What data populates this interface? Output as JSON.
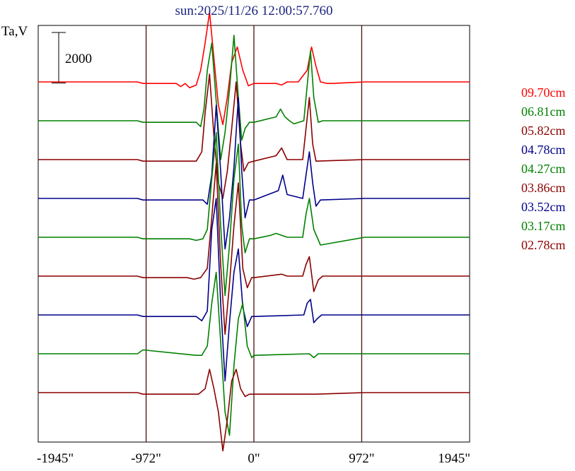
{
  "chart_data": {
    "type": "line",
    "title": "sun:2025/11/26 12:00:57.760",
    "ylabel": "Ta,V",
    "scale_bar_label": "2000",
    "scale_bar_value": 2000,
    "xlim": [
      -1945,
      1945
    ],
    "x_ticks": [
      {
        "value": -1945,
        "label": "-1945\""
      },
      {
        "value": -972,
        "label": "-972\""
      },
      {
        "value": 0,
        "label": "0\""
      },
      {
        "value": 972,
        "label": "972\""
      },
      {
        "value": 1945,
        "label": "1945\""
      }
    ],
    "vertical_gridlines": [
      -972,
      0,
      972
    ],
    "grid": true,
    "legend_placement": "right",
    "series": [
      {
        "name": "09.70cm",
        "color": "#ff0000",
        "offset": 8000,
        "x": [
          -1945,
          -1050,
          -1000,
          -700,
          -660,
          -620,
          -580,
          -520,
          -480,
          -440,
          -400,
          -360,
          -320,
          -280,
          -240,
          -200,
          -150,
          -100,
          -50,
          0,
          200,
          250,
          300,
          400,
          480,
          520,
          560,
          600,
          660,
          700,
          1000,
          1100,
          1945
        ],
        "y": [
          0,
          0,
          -40,
          -40,
          -120,
          -40,
          -150,
          -80,
          300,
          1000,
          1800,
          600,
          -600,
          -1100,
          -400,
          500,
          900,
          300,
          -100,
          -40,
          -40,
          -80,
          0,
          0,
          300,
          900,
          400,
          0,
          -40,
          -40,
          0,
          0,
          0
        ]
      },
      {
        "name": "06.81cm",
        "color": "#008000",
        "offset": 7000,
        "x": [
          -1945,
          -1050,
          -1000,
          -520,
          -480,
          -450,
          -420,
          -380,
          -340,
          -300,
          -260,
          -220,
          -180,
          -140,
          -110,
          -80,
          -40,
          0,
          200,
          240,
          280,
          320,
          360,
          450,
          480,
          510,
          540,
          580,
          620,
          1000,
          1100,
          1945
        ],
        "y": [
          0,
          0,
          -40,
          -40,
          -150,
          300,
          1300,
          2000,
          500,
          -1000,
          -300,
          800,
          2200,
          600,
          -500,
          -200,
          -40,
          -40,
          100,
          300,
          100,
          0,
          -80,
          0,
          900,
          1800,
          600,
          -40,
          0,
          0,
          0,
          0
        ]
      },
      {
        "name": "05.82cm",
        "color": "#8b0000",
        "offset": 6000,
        "x": [
          -1945,
          -1050,
          -1000,
          -520,
          -470,
          -440,
          -400,
          -360,
          -320,
          -280,
          -240,
          -200,
          -160,
          -120,
          -90,
          -50,
          0,
          200,
          250,
          300,
          440,
          470,
          500,
          530,
          560,
          1000,
          1100,
          1945
        ],
        "y": [
          0,
          0,
          -40,
          -40,
          200,
          1200,
          2200,
          600,
          -600,
          -1000,
          -300,
          800,
          2000,
          400,
          -300,
          -80,
          -40,
          100,
          300,
          0,
          0,
          800,
          1600,
          400,
          -40,
          0,
          0,
          0
        ]
      },
      {
        "name": "04.78cm",
        "color": "#00008b",
        "offset": 5000,
        "x": [
          -1945,
          -1050,
          -1000,
          -460,
          -420,
          -380,
          -340,
          -300,
          -260,
          -220,
          -180,
          -140,
          -110,
          -80,
          -40,
          0,
          220,
          260,
          300,
          440,
          470,
          500,
          530,
          560,
          600,
          1000,
          1100,
          1945
        ],
        "y": [
          0,
          0,
          -40,
          -40,
          -150,
          600,
          2400,
          700,
          -1300,
          -500,
          800,
          2600,
          700,
          -500,
          -40,
          -40,
          200,
          600,
          100,
          0,
          600,
          1200,
          400,
          -200,
          -40,
          0,
          0,
          0
        ]
      },
      {
        "name": "04.27cm",
        "color": "#008000",
        "offset": 4000,
        "x": [
          -1945,
          -1050,
          -1000,
          -580,
          -520,
          -460,
          -420,
          -380,
          -340,
          -300,
          -260,
          -220,
          -180,
          -140,
          -110,
          -80,
          -40,
          0,
          150,
          200,
          250,
          300,
          440,
          470,
          500,
          540,
          600,
          1000,
          1100,
          1945
        ],
        "y": [
          0,
          0,
          -40,
          -40,
          -80,
          -40,
          200,
          1500,
          2700,
          300,
          -1500,
          -200,
          1500,
          2400,
          300,
          -400,
          -40,
          -40,
          50,
          100,
          50,
          0,
          0,
          600,
          1000,
          200,
          -200,
          0,
          0,
          0
        ]
      },
      {
        "name": "03.86cm",
        "color": "#8b0000",
        "offset": 3000,
        "x": [
          -1945,
          -1050,
          -1000,
          -600,
          -540,
          -480,
          -420,
          -380,
          -340,
          -300,
          -260,
          -220,
          -180,
          -140,
          -100,
          -60,
          -20,
          0,
          250,
          300,
          440,
          470,
          500,
          540,
          580,
          620,
          1000,
          1100,
          1945
        ],
        "y": [
          0,
          0,
          -40,
          -40,
          -80,
          -40,
          200,
          1500,
          2900,
          300,
          -1500,
          -200,
          1300,
          2400,
          200,
          -300,
          -40,
          -40,
          50,
          0,
          0,
          300,
          500,
          -400,
          -100,
          0,
          0,
          0,
          0
        ]
      },
      {
        "name": "03.52cm",
        "color": "#00008b",
        "offset": 2000,
        "x": [
          -1945,
          -1050,
          -1000,
          -520,
          -470,
          -420,
          -380,
          -340,
          -300,
          -260,
          -220,
          -180,
          -140,
          -100,
          -60,
          -20,
          0,
          450,
          480,
          510,
          540,
          570,
          610,
          1000,
          1100,
          1945
        ],
        "y": [
          0,
          0,
          -40,
          -40,
          -150,
          100,
          2200,
          3000,
          300,
          -1700,
          -200,
          1100,
          1700,
          200,
          -300,
          -40,
          -40,
          0,
          300,
          400,
          -200,
          -100,
          0,
          0,
          0,
          0
        ]
      },
      {
        "name": "03.17cm",
        "color": "#008000",
        "offset": 1000,
        "x": [
          -1945,
          -1050,
          -1000,
          -520,
          -470,
          -420,
          -380,
          -340,
          -300,
          -260,
          -220,
          -180,
          -140,
          -100,
          -60,
          -20,
          0,
          500,
          540,
          580,
          1000,
          1100,
          1945
        ],
        "y": [
          0,
          0,
          100,
          -40,
          -40,
          200,
          1300,
          2100,
          300,
          -1500,
          -2100,
          -300,
          900,
          1300,
          200,
          -100,
          -40,
          0,
          -100,
          0,
          0,
          0,
          0
        ]
      },
      {
        "name": "02.78cm",
        "color": "#8b0000",
        "offset": 0,
        "x": [
          -1945,
          -1050,
          -1000,
          -500,
          -440,
          -400,
          -360,
          -320,
          -280,
          -240,
          -200,
          -160,
          -120,
          -80,
          -40,
          0,
          560,
          1000,
          1100,
          1945
        ],
        "y": [
          0,
          0,
          -40,
          -40,
          100,
          600,
          100,
          -500,
          -1500,
          -700,
          300,
          600,
          100,
          -100,
          -40,
          -40,
          -40,
          0,
          0,
          0
        ]
      }
    ]
  }
}
